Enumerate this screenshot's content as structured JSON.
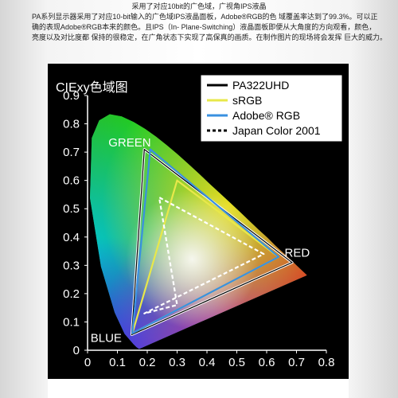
{
  "header": {
    "lines": [
      "采用了对应10bit的广色域，广视角IPS液晶",
      "PA系列显示器采用了对应10-bit输入的广色域IPS液晶面板，Adobe®RGB的色 域覆盖率达到了99.3%。可以正",
      "确的表现Adobe®RGB本来的颜色。且IPS（In- Plane-Switching）液晶面板即便从大角度的方向观看，颜色，",
      "亮度以及对比度都 保持的很稳定，在广角状态下实现了高保真的画质。在制作图片的现场将会发挥 巨大的威力。"
    ]
  },
  "chart_data": {
    "type": "scatter",
    "title": "CIExy色域图",
    "xlabel": "",
    "ylabel": "",
    "xlim": [
      0,
      0.8
    ],
    "ylim": [
      0,
      0.9
    ],
    "x_ticks": [
      "0",
      "0.1",
      "0.2",
      "0.3",
      "0.4",
      "0.5",
      "0.6",
      "0.7",
      "0.8"
    ],
    "y_ticks": [
      "0",
      "0.1",
      "0.2",
      "0.3",
      "0.4",
      "0.5",
      "0.6",
      "0.7",
      "0.8",
      "0.9"
    ],
    "grid": false,
    "legend_position": "top-right",
    "annotations": [
      {
        "text": "GREEN",
        "x": 0.07,
        "y": 0.72
      },
      {
        "text": "RED",
        "x": 0.66,
        "y": 0.33
      },
      {
        "text": "BLUE",
        "x": 0.01,
        "y": 0.03
      }
    ],
    "series": [
      {
        "name": "PA322UHD",
        "color": "#ffffff",
        "dash": "solid",
        "points": [
          [
            0.685,
            0.31
          ],
          [
            0.19,
            0.71
          ],
          [
            0.148,
            0.055
          ]
        ]
      },
      {
        "name": "sRGB",
        "color": "#e8e84a",
        "dash": "solid",
        "points": [
          [
            0.64,
            0.33
          ],
          [
            0.3,
            0.6
          ],
          [
            0.15,
            0.06
          ]
        ]
      },
      {
        "name": "Adobe® RGB",
        "color": "#3a90e0",
        "dash": "solid",
        "points": [
          [
            0.64,
            0.33
          ],
          [
            0.21,
            0.71
          ],
          [
            0.15,
            0.06
          ]
        ]
      },
      {
        "name": "Japan Color 2001",
        "color": "#ffffff",
        "dash": "dashed",
        "points": [
          [
            0.59,
            0.34
          ],
          [
            0.24,
            0.54
          ],
          [
            0.3,
            0.16
          ],
          [
            0.19,
            0.13
          ]
        ]
      }
    ]
  }
}
